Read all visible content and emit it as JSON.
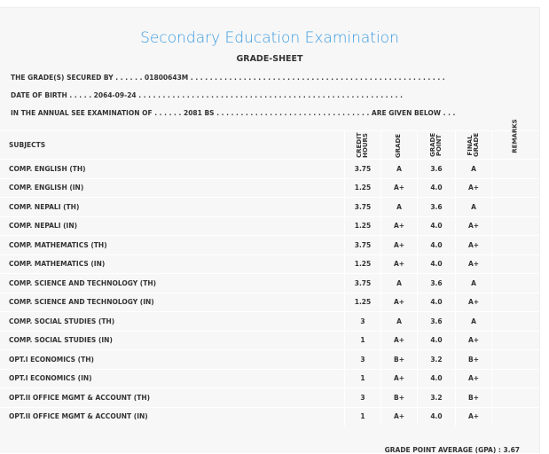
{
  "header": {
    "title": "Secondary Education Examination",
    "subtitle": "GRADE-SHEET"
  },
  "info": {
    "line1": "THE GRADE(S) SECURED BY . . . . . . 01800643M . . . . . . . . . . . . . . . . . . . . . . . . . . . . . . . . . . . . . . . . . . . . . . . . . . . . .",
    "line2": "DATE OF BIRTH . . . . . 2064-09-24 . . . . . . . . . . . . . . . . . . . . . . . . . . . . . . . . . . . . . . . . . . . . . . . . . . . . . . .",
    "line3": "IN THE ANNUAL SEE EXAMINATION OF . . . . . . 2081 BS . . . . . . . . . . . . . . . . . . . . . . . . . . . . . . . . ARE GIVEN BELOW . . ."
  },
  "table": {
    "headers": [
      "SUBJECTS",
      "CREDIT HOURS",
      "GRADE",
      "GRADE POINT",
      "FINAL GRADE",
      "REMARKS"
    ],
    "rows": [
      [
        "COMP. ENGLISH (TH)",
        "3.75",
        "A",
        "3.6",
        "A"
      ],
      [
        "COMP. ENGLISH (IN)",
        "1.25",
        "A+",
        "4.0",
        "A+"
      ],
      [
        "COMP. NEPALI (TH)",
        "3.75",
        "A",
        "3.6",
        "A"
      ],
      [
        "COMP. NEPALI (IN)",
        "1.25",
        "A+",
        "4.0",
        "A+"
      ],
      [
        "COMP. MATHEMATICS (TH)",
        "3.75",
        "A+",
        "4.0",
        "A+"
      ],
      [
        "COMP. MATHEMATICS (IN)",
        "1.25",
        "A+",
        "4.0",
        "A+"
      ],
      [
        "COMP. SCIENCE AND TECHNOLOGY (TH)",
        "3.75",
        "A",
        "3.6",
        "A"
      ],
      [
        "COMP. SCIENCE AND TECHNOLOGY (IN)",
        "1.25",
        "A+",
        "4.0",
        "A+"
      ],
      [
        "COMP. SOCIAL STUDIES (TH)",
        "3",
        "A",
        "3.6",
        "A"
      ],
      [
        "COMP. SOCIAL STUDIES (IN)",
        "1",
        "A+",
        "4.0",
        "A+"
      ],
      [
        "OPT.I ECONOMICS (TH)",
        "3",
        "B+",
        "3.2",
        "B+"
      ],
      [
        "OPT.I ECONOMICS (IN)",
        "1",
        "A+",
        "4.0",
        "A+"
      ],
      [
        "OPT.II OFFICE MGMT & ACCOUNT (TH)",
        "3",
        "B+",
        "3.2",
        "B+"
      ],
      [
        "OPT.II OFFICE MGMT & ACCOUNT (IN)",
        "1",
        "A+",
        "4.0",
        "A+"
      ]
    ]
  },
  "gpa": "GRADE POINT AVERAGE (GPA) : 3.67"
}
